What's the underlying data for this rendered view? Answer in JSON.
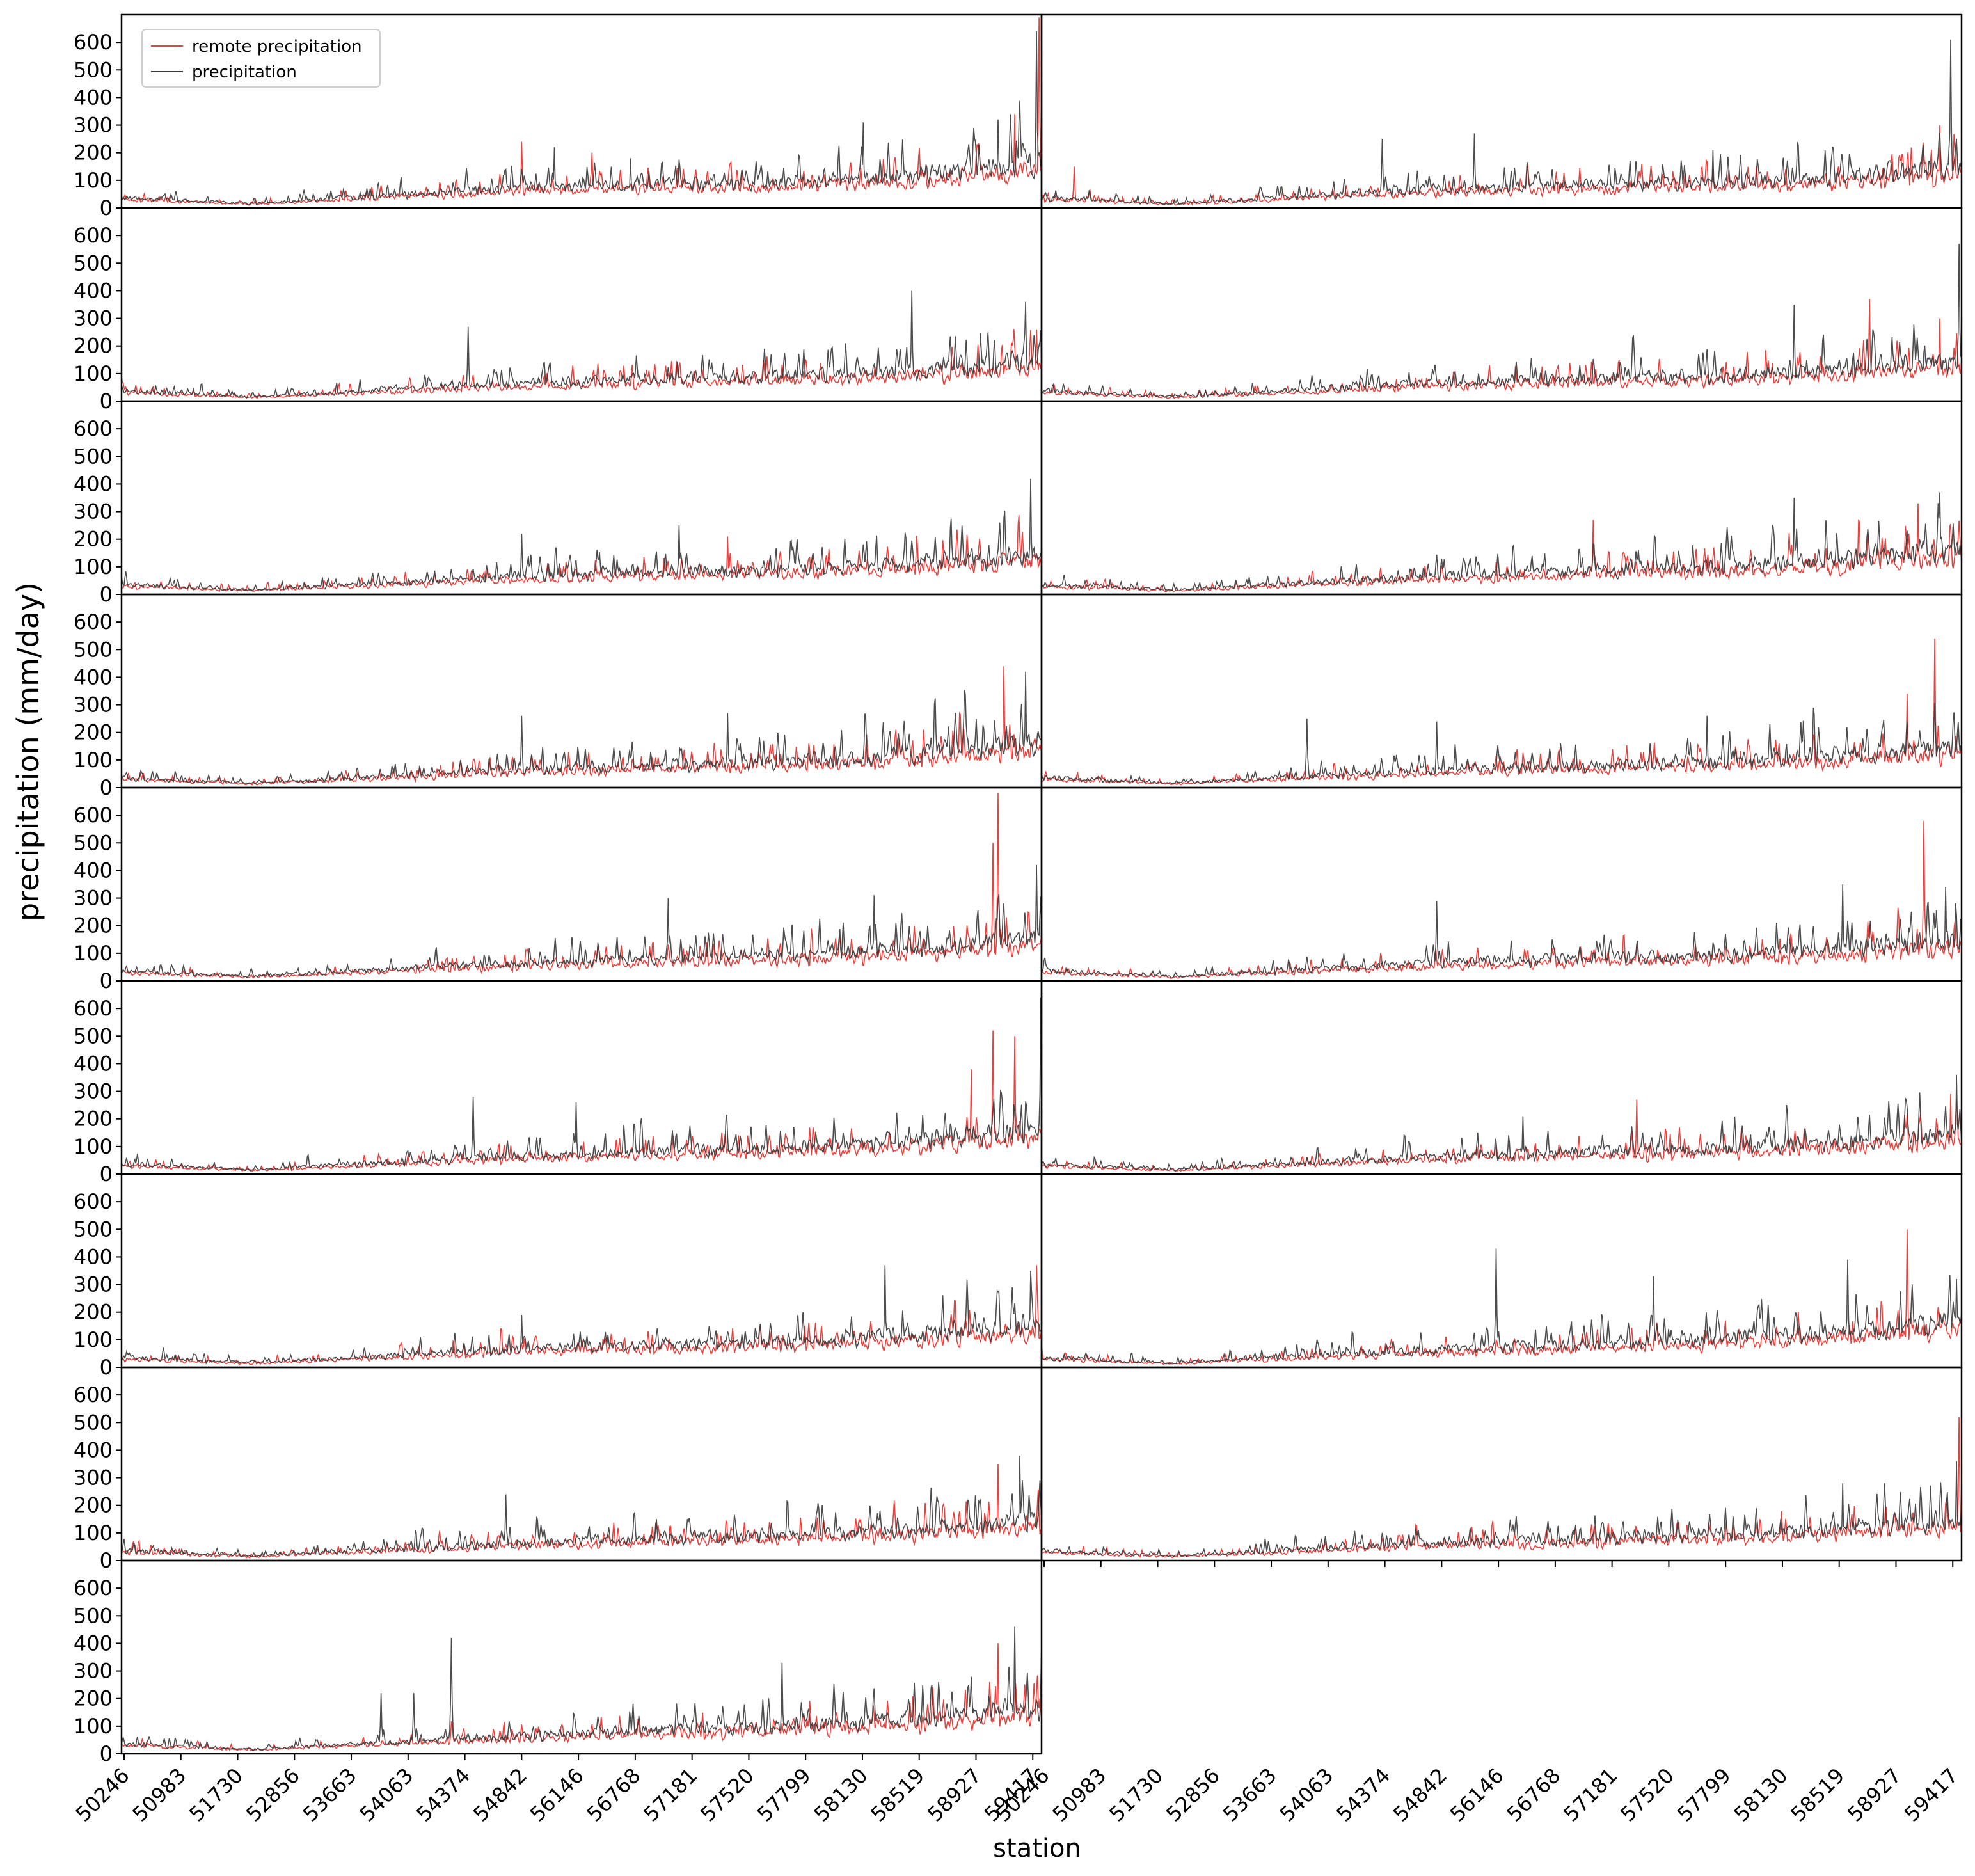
{
  "chart_data": {
    "type": "line",
    "layout": {
      "rows": 9,
      "cols": 2,
      "panel_count": 17
    },
    "xlabel": "station",
    "ylabel": "precipitation (mm/day)",
    "ylim": [
      0,
      700
    ],
    "yticks": [
      0,
      100,
      200,
      300,
      400,
      500,
      600
    ],
    "x_tick_labels": [
      "50246",
      "50983",
      "51730",
      "52856",
      "53663",
      "54063",
      "54374",
      "54842",
      "56146",
      "56768",
      "57181",
      "57520",
      "57799",
      "58130",
      "58519",
      "58927",
      "59417"
    ],
    "grid": false,
    "legend": {
      "placement": "top-left",
      "panel": 0,
      "entries": [
        {
          "label": "remote precipitation",
          "color": "#e8423f"
        },
        {
          "label": "precipitation",
          "color": "#3a3a3a"
        }
      ]
    },
    "series_style": [
      {
        "name": "remote precipitation",
        "color": "#e8423f"
      },
      {
        "name": "precipitation",
        "color": "#3a3a3a"
      }
    ],
    "panels": [
      {
        "row": 0,
        "col": 0,
        "baseline": [
          40,
          18,
          52,
          80,
          95,
          105,
          130,
          185
        ],
        "precip_peaks": [
          [
            8.0,
            220
          ],
          [
            9.4,
            180
          ],
          [
            13.7,
            310
          ],
          [
            16.2,
            320
          ],
          [
            16.9,
            640
          ]
        ],
        "remote_peaks": [
          [
            7.4,
            240
          ],
          [
            8.7,
            200
          ],
          [
            16.5,
            340
          ],
          [
            16.95,
            690
          ]
        ]
      },
      {
        "row": 0,
        "col": 1,
        "baseline": [
          40,
          18,
          48,
          75,
          90,
          100,
          120,
          170
        ],
        "precip_peaks": [
          [
            6.3,
            250
          ],
          [
            8.0,
            270
          ],
          [
            12.4,
            210
          ],
          [
            16.8,
            610
          ]
        ],
        "remote_peaks": [
          [
            0.6,
            150
          ],
          [
            16.6,
            300
          ]
        ]
      },
      {
        "row": 1,
        "col": 0,
        "baseline": [
          40,
          18,
          45,
          72,
          88,
          100,
          120,
          160
        ],
        "precip_peaks": [
          [
            6.4,
            270
          ],
          [
            14.6,
            400
          ],
          [
            16.7,
            360
          ]
        ],
        "remote_peaks": [
          [
            16.9,
            260
          ]
        ]
      },
      {
        "row": 1,
        "col": 1,
        "baseline": [
          40,
          18,
          45,
          72,
          88,
          100,
          125,
          165
        ],
        "precip_peaks": [
          [
            13.9,
            350
          ],
          [
            16.95,
            570
          ]
        ],
        "remote_peaks": [
          [
            15.3,
            370
          ],
          [
            16.6,
            300
          ]
        ]
      },
      {
        "row": 2,
        "col": 0,
        "baseline": [
          40,
          18,
          45,
          72,
          88,
          100,
          125,
          165
        ],
        "precip_peaks": [
          [
            7.4,
            220
          ],
          [
            10.3,
            250
          ],
          [
            16.8,
            420
          ]
        ],
        "remote_peaks": [
          [
            11.2,
            210
          ]
        ]
      },
      {
        "row": 2,
        "col": 1,
        "baseline": [
          40,
          18,
          45,
          72,
          88,
          110,
          135,
          185
        ],
        "precip_peaks": [
          [
            13.9,
            350
          ],
          [
            16.6,
            370
          ]
        ],
        "remote_peaks": [
          [
            10.2,
            270
          ],
          [
            16.2,
            330
          ]
        ]
      },
      {
        "row": 3,
        "col": 0,
        "baseline": [
          40,
          18,
          45,
          72,
          90,
          105,
          130,
          180
        ],
        "precip_peaks": [
          [
            7.4,
            260
          ],
          [
            11.2,
            270
          ],
          [
            16.7,
            420
          ]
        ],
        "remote_peaks": [
          [
            16.3,
            440
          ]
        ]
      },
      {
        "row": 3,
        "col": 1,
        "baseline": [
          40,
          18,
          45,
          72,
          88,
          100,
          125,
          165
        ],
        "precip_peaks": [
          [
            4.9,
            250
          ],
          [
            7.3,
            240
          ],
          [
            12.3,
            260
          ]
        ],
        "remote_peaks": [
          [
            16.0,
            340
          ],
          [
            16.5,
            540
          ]
        ]
      },
      {
        "row": 4,
        "col": 0,
        "baseline": [
          40,
          18,
          45,
          72,
          88,
          100,
          125,
          170
        ],
        "precip_peaks": [
          [
            10.1,
            300
          ],
          [
            13.9,
            310
          ],
          [
            16.9,
            420
          ]
        ],
        "remote_peaks": [
          [
            16.1,
            500
          ],
          [
            16.2,
            680
          ]
        ]
      },
      {
        "row": 4,
        "col": 1,
        "baseline": [
          40,
          18,
          45,
          72,
          88,
          100,
          125,
          165
        ],
        "precip_peaks": [
          [
            7.3,
            290
          ],
          [
            14.8,
            350
          ],
          [
            16.7,
            340
          ]
        ],
        "remote_peaks": [
          [
            16.3,
            580
          ]
        ]
      },
      {
        "row": 5,
        "col": 0,
        "baseline": [
          40,
          18,
          45,
          72,
          90,
          105,
          130,
          180
        ],
        "precip_peaks": [
          [
            6.5,
            280
          ],
          [
            8.4,
            260
          ],
          [
            16.99,
            640
          ]
        ],
        "remote_peaks": [
          [
            15.7,
            380
          ],
          [
            16.1,
            520
          ],
          [
            16.5,
            500
          ]
        ]
      },
      {
        "row": 5,
        "col": 1,
        "baseline": [
          40,
          18,
          45,
          72,
          88,
          100,
          125,
          165
        ],
        "precip_peaks": [
          [
            8.9,
            210
          ],
          [
            16.9,
            360
          ]
        ],
        "remote_peaks": [
          [
            11.0,
            270
          ],
          [
            16.8,
            290
          ]
        ]
      },
      {
        "row": 6,
        "col": 0,
        "baseline": [
          40,
          18,
          45,
          72,
          90,
          105,
          130,
          175
        ],
        "precip_peaks": [
          [
            7.4,
            190
          ],
          [
            14.1,
            370
          ],
          [
            16.8,
            350
          ]
        ],
        "remote_peaks": [
          [
            16.9,
            370
          ]
        ]
      },
      {
        "row": 6,
        "col": 1,
        "baseline": [
          40,
          18,
          45,
          72,
          88,
          110,
          135,
          185
        ],
        "precip_peaks": [
          [
            8.4,
            430
          ],
          [
            11.3,
            330
          ],
          [
            14.9,
            390
          ],
          [
            16.9,
            320
          ]
        ],
        "remote_peaks": [
          [
            16.0,
            500
          ]
        ]
      },
      {
        "row": 7,
        "col": 0,
        "baseline": [
          40,
          18,
          45,
          72,
          88,
          100,
          125,
          165
        ],
        "precip_peaks": [
          [
            7.1,
            240
          ],
          [
            16.6,
            380
          ]
        ],
        "remote_peaks": [
          [
            16.2,
            350
          ]
        ]
      },
      {
        "row": 7,
        "col": 1,
        "baseline": [
          40,
          18,
          45,
          72,
          88,
          100,
          125,
          165
        ],
        "precip_peaks": [
          [
            14.8,
            280
          ],
          [
            16.9,
            360
          ]
        ],
        "remote_peaks": [
          [
            16.95,
            520
          ]
        ]
      },
      {
        "row": 8,
        "col": 0,
        "baseline": [
          40,
          18,
          45,
          72,
          95,
          110,
          140,
          180
        ],
        "precip_peaks": [
          [
            4.8,
            220
          ],
          [
            5.4,
            220
          ],
          [
            6.1,
            420
          ],
          [
            12.2,
            330
          ],
          [
            16.5,
            460
          ]
        ],
        "remote_peaks": [
          [
            16.2,
            400
          ]
        ]
      }
    ]
  }
}
